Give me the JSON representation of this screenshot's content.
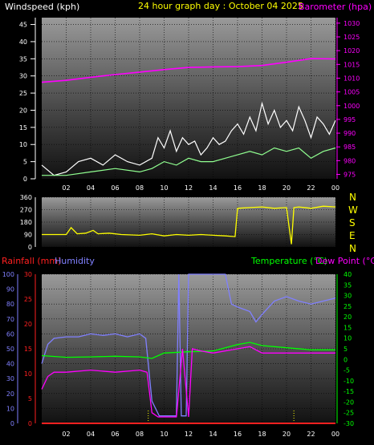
{
  "header": {
    "windspeed_label": "Windspeed (kph)",
    "title": "24 hour graph day : October 04 2025",
    "barometer_label": "Barometer (hpa)"
  },
  "lower_header": {
    "rainfall_label": "Rainfall (mm)",
    "humidity_label": "Humidity",
    "temperature_label": "Temperature (°C)",
    "dewpoint_label": "Dew Point (°C)"
  },
  "direction_labels": [
    "N",
    "W",
    "S",
    "E",
    "N"
  ],
  "colors": {
    "windspeed": "#ffffff",
    "wind_gust": "#90ff90",
    "barometer": "#ff00ff",
    "title": "#ffff00",
    "direction": "#ffff00",
    "rainfall": "#ff2020",
    "humidity": "#8080ff",
    "temperature": "#00ff00",
    "dewpoint": "#ff00ff",
    "cardinal": "#ffff00"
  },
  "chart_data": [
    {
      "type": "line",
      "id": "wind-barometer",
      "x_ticks": [
        "02",
        "04",
        "06",
        "08",
        "10",
        "12",
        "14",
        "16",
        "18",
        "20",
        "22",
        "00"
      ],
      "left_axis": {
        "ticks": [
          0,
          5,
          10,
          15,
          20,
          25,
          30,
          35,
          40,
          45
        ],
        "ylim": [
          0,
          47
        ]
      },
      "right_axis": {
        "ticks": [
          975,
          980,
          985,
          990,
          995,
          1000,
          1005,
          1010,
          1015,
          1020,
          1025,
          1030
        ],
        "ylim": [
          973.4,
          1032
        ]
      },
      "grid": true,
      "series": [
        {
          "name": "Windspeed (kph)",
          "axis": "left",
          "x": [
            0,
            1,
            2,
            3,
            4,
            5,
            6,
            7,
            8,
            9,
            9.5,
            10,
            10.5,
            11,
            11.5,
            12,
            12.5,
            13,
            13.5,
            14,
            14.5,
            15,
            15.5,
            16,
            16.5,
            17,
            17.5,
            18,
            18.5,
            19,
            19.5,
            20,
            20.5,
            21,
            21.5,
            22,
            22.5,
            23,
            23.5,
            24
          ],
          "values": [
            4,
            1,
            2,
            5,
            6,
            4,
            7,
            5,
            4,
            6,
            12,
            9,
            14,
            8,
            12,
            10,
            11,
            7,
            9,
            12,
            10,
            11,
            14,
            16,
            13,
            18,
            14,
            22,
            16,
            20,
            15,
            17,
            14,
            21,
            17,
            12,
            18,
            16,
            13,
            17
          ]
        },
        {
          "name": "Wind Gust",
          "axis": "left",
          "x": [
            0,
            2,
            4,
            6,
            8,
            9,
            10,
            11,
            12,
            13,
            14,
            15,
            16,
            17,
            18,
            19,
            20,
            21,
            22,
            23,
            24
          ],
          "values": [
            1,
            1,
            2,
            3,
            2,
            3,
            5,
            4,
            6,
            5,
            5,
            6,
            7,
            8,
            7,
            9,
            8,
            9,
            6,
            8,
            9
          ]
        },
        {
          "name": "Barometer (hpa)",
          "axis": "right",
          "x": [
            0,
            2,
            4,
            6,
            8,
            10,
            12,
            14,
            16,
            18,
            20,
            22,
            24
          ],
          "values": [
            1008.5,
            1009.2,
            1010.3,
            1011.3,
            1012.2,
            1013.1,
            1013.9,
            1014.1,
            1014.2,
            1014.6,
            1015.8,
            1017.1,
            1017.0
          ]
        }
      ]
    },
    {
      "type": "line",
      "id": "wind-direction",
      "x_ticks": [
        "02",
        "04",
        "06",
        "08",
        "10",
        "12",
        "14",
        "16",
        "18",
        "20",
        "22",
        "00"
      ],
      "left_axis": {
        "ticks": [
          0,
          90,
          180,
          270,
          360
        ],
        "ylim": [
          0,
          360
        ]
      },
      "grid": true,
      "series": [
        {
          "name": "Wind Direction",
          "x": [
            0,
            2,
            2.4,
            2.9,
            3.6,
            4.2,
            4.6,
            5.5,
            6.5,
            8,
            9,
            10,
            11,
            12,
            13,
            14,
            15,
            15.8,
            16,
            17,
            18,
            19,
            20,
            20.4,
            20.6,
            21,
            22,
            23,
            24
          ],
          "values": [
            90,
            90,
            140,
            95,
            100,
            120,
            95,
            100,
            90,
            85,
            95,
            80,
            90,
            85,
            90,
            85,
            80,
            75,
            280,
            285,
            290,
            280,
            285,
            20,
            285,
            290,
            280,
            295,
            290
          ]
        }
      ]
    },
    {
      "type": "line",
      "id": "temp-humidity-rain",
      "x_ticks": [
        "02",
        "04",
        "06",
        "08",
        "10",
        "12",
        "14",
        "16",
        "18",
        "20",
        "22",
        "00"
      ],
      "left_axis": {
        "ticks": [
          0,
          10,
          20,
          30,
          40,
          50,
          60,
          70,
          80,
          90,
          100
        ],
        "ylim": [
          0,
          100
        ]
      },
      "left_axis_rain": {
        "ticks": [
          0,
          5,
          10,
          15,
          20,
          25,
          30
        ],
        "ylim": [
          0,
          30
        ]
      },
      "right_axis": {
        "ticks": [
          -30,
          -25,
          -20,
          -15,
          -10,
          -5,
          0,
          5,
          10,
          15,
          20,
          25,
          30,
          35,
          40
        ],
        "ylim": [
          -30,
          40
        ]
      },
      "grid": true,
      "series": [
        {
          "name": "Humidity",
          "axis": "left",
          "x": [
            0,
            0.5,
            1,
            2,
            3,
            4,
            5,
            6,
            7,
            8,
            8.5,
            9,
            9.3,
            9.6,
            10,
            10.5,
            11,
            11.2,
            11.4,
            11.8,
            12,
            12.4,
            13,
            14,
            15,
            15.5,
            16,
            17,
            17.5,
            18,
            19,
            20,
            21,
            22,
            23,
            24
          ],
          "values": [
            40,
            53,
            57,
            58,
            58,
            60,
            59,
            60,
            58,
            60,
            57,
            15,
            10,
            5,
            5,
            5,
            5,
            100,
            5,
            5,
            100,
            100,
            100,
            100,
            100,
            80,
            78,
            75,
            68,
            73,
            82,
            85,
            82,
            80,
            82,
            84
          ]
        },
        {
          "name": "Temperature (°C)",
          "axis": "right",
          "x": [
            0,
            2,
            4,
            6,
            8,
            9,
            10,
            12,
            14,
            16,
            17,
            18,
            20,
            22,
            24
          ],
          "values": [
            1.8,
            1.0,
            1.2,
            1.5,
            1.2,
            0.5,
            3.0,
            3.6,
            4.0,
            7.0,
            8.0,
            6.5,
            5.5,
            4.5,
            4.5
          ]
        },
        {
          "name": "Dew Point (°C)",
          "axis": "right",
          "x": [
            0,
            0.5,
            1,
            2,
            4,
            6,
            8,
            8.6,
            9,
            9.5,
            10,
            11,
            11.5,
            12,
            12.3,
            13,
            14,
            16,
            17,
            18,
            20,
            22,
            24
          ],
          "values": [
            -14,
            -8,
            -6,
            -6,
            -5,
            -6,
            -5,
            -6,
            -25,
            -27,
            -27,
            -27,
            5,
            -27,
            5,
            4,
            3,
            5,
            6,
            3,
            3,
            3,
            3
          ]
        },
        {
          "name": "Rainfall (mm)",
          "axis": "left_rain",
          "x": [
            0,
            24
          ],
          "values": [
            0,
            0
          ]
        }
      ]
    }
  ]
}
